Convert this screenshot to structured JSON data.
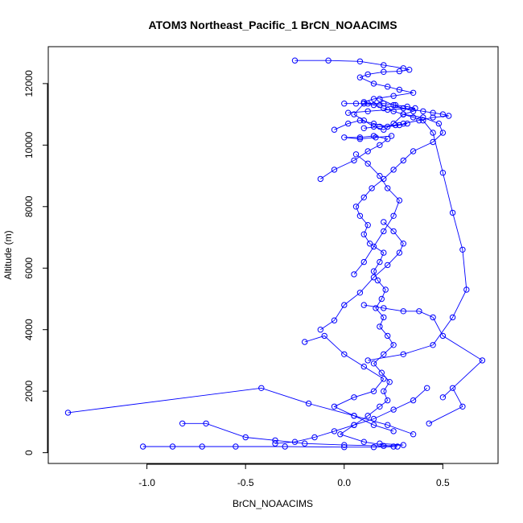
{
  "chart_data": {
    "type": "scatter",
    "title": "ATOM3 Northeast_Pacific_1 BrCN_NOAACIMS",
    "xlabel": "BrCN_NOAACIMS",
    "ylabel": "Altitude (m)",
    "xlim": [
      -1.5,
      0.78
    ],
    "ylim": [
      -350,
      13200
    ],
    "xticks": [
      -1.0,
      -0.5,
      0.0,
      0.5
    ],
    "xtick_labels": [
      "-1.0",
      "-0.5",
      "0.0",
      "0.5"
    ],
    "yticks": [
      0,
      2000,
      4000,
      6000,
      8000,
      10000,
      12000
    ],
    "ytick_labels": [
      "0",
      "2000",
      "4000",
      "6000",
      "8000",
      "10000",
      "12000"
    ],
    "series_color": "#0000ff",
    "marker": "open-circle",
    "connected": true,
    "grid": false,
    "series": [
      {
        "x": [
          0.25,
          0.1,
          -0.02,
          0.05,
          0.12,
          0.18,
          0.22,
          0.2,
          0.23,
          0.19,
          0.15,
          0.2,
          0.25,
          0.22,
          0.18,
          0.2,
          0.16,
          0.19,
          0.21,
          0.17,
          0.15,
          0.18,
          0.2,
          0.13,
          0.1,
          0.12,
          0.08,
          0.06,
          0.1,
          0.14,
          0.2,
          0.25,
          0.3,
          0.35,
          0.45,
          0.5,
          0.48,
          0.4,
          0.3,
          0.25,
          0.2,
          0.15,
          0.1,
          0.05,
          0.1,
          0.15,
          0.2,
          0.25,
          0.3,
          0.35,
          0.25,
          0.18
        ],
        "y": [
          200,
          350,
          600,
          900,
          1200,
          1500,
          1700,
          2000,
          2300,
          2600,
          2900,
          3200,
          3500,
          3800,
          4100,
          4400,
          4700,
          5000,
          5300,
          5600,
          5900,
          6200,
          6500,
          6800,
          7100,
          7400,
          7700,
          8000,
          8300,
          8600,
          8900,
          9200,
          9500,
          9800,
          10100,
          10400,
          10700,
          10900,
          11000,
          11100,
          11200,
          11300,
          11350,
          11000,
          10800,
          10600,
          10500,
          10700,
          11000,
          11100,
          11300,
          11500
        ]
      },
      {
        "x": [
          -0.25,
          -0.08,
          0.08,
          0.2,
          0.3,
          0.33,
          0.28,
          0.2,
          0.12,
          0.08,
          0.15,
          0.22,
          0.28,
          0.35,
          0.25,
          0.15,
          0.1,
          0.18,
          0.3,
          0.4,
          0.45,
          0.5,
          0.53,
          0.45,
          0.38,
          0.3
        ],
        "y": [
          12750,
          12750,
          12720,
          12600,
          12500,
          12450,
          12400,
          12380,
          12300,
          12200,
          12000,
          11900,
          11800,
          11700,
          11600,
          11500,
          11400,
          11300,
          11200,
          11100,
          11050,
          11000,
          10950,
          10900,
          10800,
          10700
        ]
      },
      {
        "x": [
          -1.4,
          -0.42,
          -0.18,
          0.05,
          0.22,
          0.35
        ],
        "y": [
          1300,
          2100,
          1600,
          1200,
          900,
          600
        ]
      },
      {
        "x": [
          -1.02,
          -0.87,
          -0.72,
          -0.55,
          -0.3,
          0.0,
          0.15,
          0.27
        ],
        "y": [
          200,
          200,
          200,
          200,
          200,
          180,
          180,
          200
        ]
      },
      {
        "x": [
          -0.82,
          -0.7,
          -0.5,
          -0.35,
          -0.2,
          0.0,
          0.2,
          0.3,
          0.18
        ],
        "y": [
          950,
          950,
          500,
          400,
          300,
          250,
          220,
          250,
          300
        ]
      },
      {
        "x": [
          0.12,
          0.3,
          0.45,
          0.55,
          0.62,
          0.6,
          0.55,
          0.5,
          0.45,
          0.4,
          0.35,
          0.3
        ],
        "y": [
          3000,
          3200,
          3500,
          4400,
          5300,
          6600,
          7800,
          9100,
          10400,
          10800,
          10900,
          11000
        ]
      },
      {
        "x": [
          0.43,
          0.6,
          0.55,
          0.5,
          0.7,
          0.5,
          0.45,
          0.38,
          0.3,
          0.2,
          0.1
        ],
        "y": [
          950,
          1500,
          2100,
          1800,
          3000,
          3800,
          4400,
          4600,
          4600,
          4700,
          4800
        ]
      },
      {
        "x": [
          -0.2,
          -0.1,
          0.0,
          0.1,
          0.2,
          0.15,
          0.05,
          -0.05,
          0.05,
          0.15,
          0.25
        ],
        "y": [
          3600,
          3800,
          3200,
          2800,
          2400,
          2000,
          1800,
          1500,
          1200,
          900,
          700
        ]
      },
      {
        "x": [
          -0.12,
          -0.05,
          0.05,
          0.12,
          0.18,
          0.22,
          0.15,
          0.08,
          0.0,
          0.08,
          0.16,
          0.24
        ],
        "y": [
          8900,
          9200,
          9500,
          9800,
          10000,
          10200,
          10300,
          10250,
          10250,
          10200,
          10250,
          10300
        ]
      },
      {
        "x": [
          -0.05,
          0.02,
          0.08,
          0.15,
          0.22,
          0.28,
          0.32,
          0.26,
          0.18,
          0.1
        ],
        "y": [
          10500,
          10700,
          10800,
          10700,
          10600,
          10650,
          10700,
          10650,
          10600,
          10550
        ]
      },
      {
        "x": [
          0.0,
          0.06,
          0.12,
          0.2,
          0.26,
          0.32,
          0.36,
          0.22,
          0.12,
          0.02
        ],
        "y": [
          11350,
          11350,
          11350,
          11350,
          11300,
          11250,
          11200,
          11150,
          11100,
          11050
        ]
      },
      {
        "x": [
          -0.12,
          -0.05,
          0.0,
          0.08,
          0.15,
          0.22,
          0.28,
          0.3,
          0.25,
          0.2
        ],
        "y": [
          4000,
          4300,
          4800,
          5200,
          5700,
          6100,
          6500,
          6800,
          7200,
          7500
        ]
      },
      {
        "x": [
          0.05,
          0.1,
          0.15,
          0.2,
          0.25,
          0.28,
          0.22,
          0.18,
          0.12,
          0.06
        ],
        "y": [
          5800,
          6200,
          6700,
          7200,
          7700,
          8200,
          8600,
          9000,
          9400,
          9700
        ]
      },
      {
        "x": [
          -0.35,
          -0.25,
          -0.15,
          -0.05,
          0.05,
          0.15,
          0.25,
          0.35,
          0.42
        ],
        "y": [
          300,
          350,
          500,
          700,
          900,
          1100,
          1400,
          1700,
          2100
        ]
      }
    ]
  }
}
